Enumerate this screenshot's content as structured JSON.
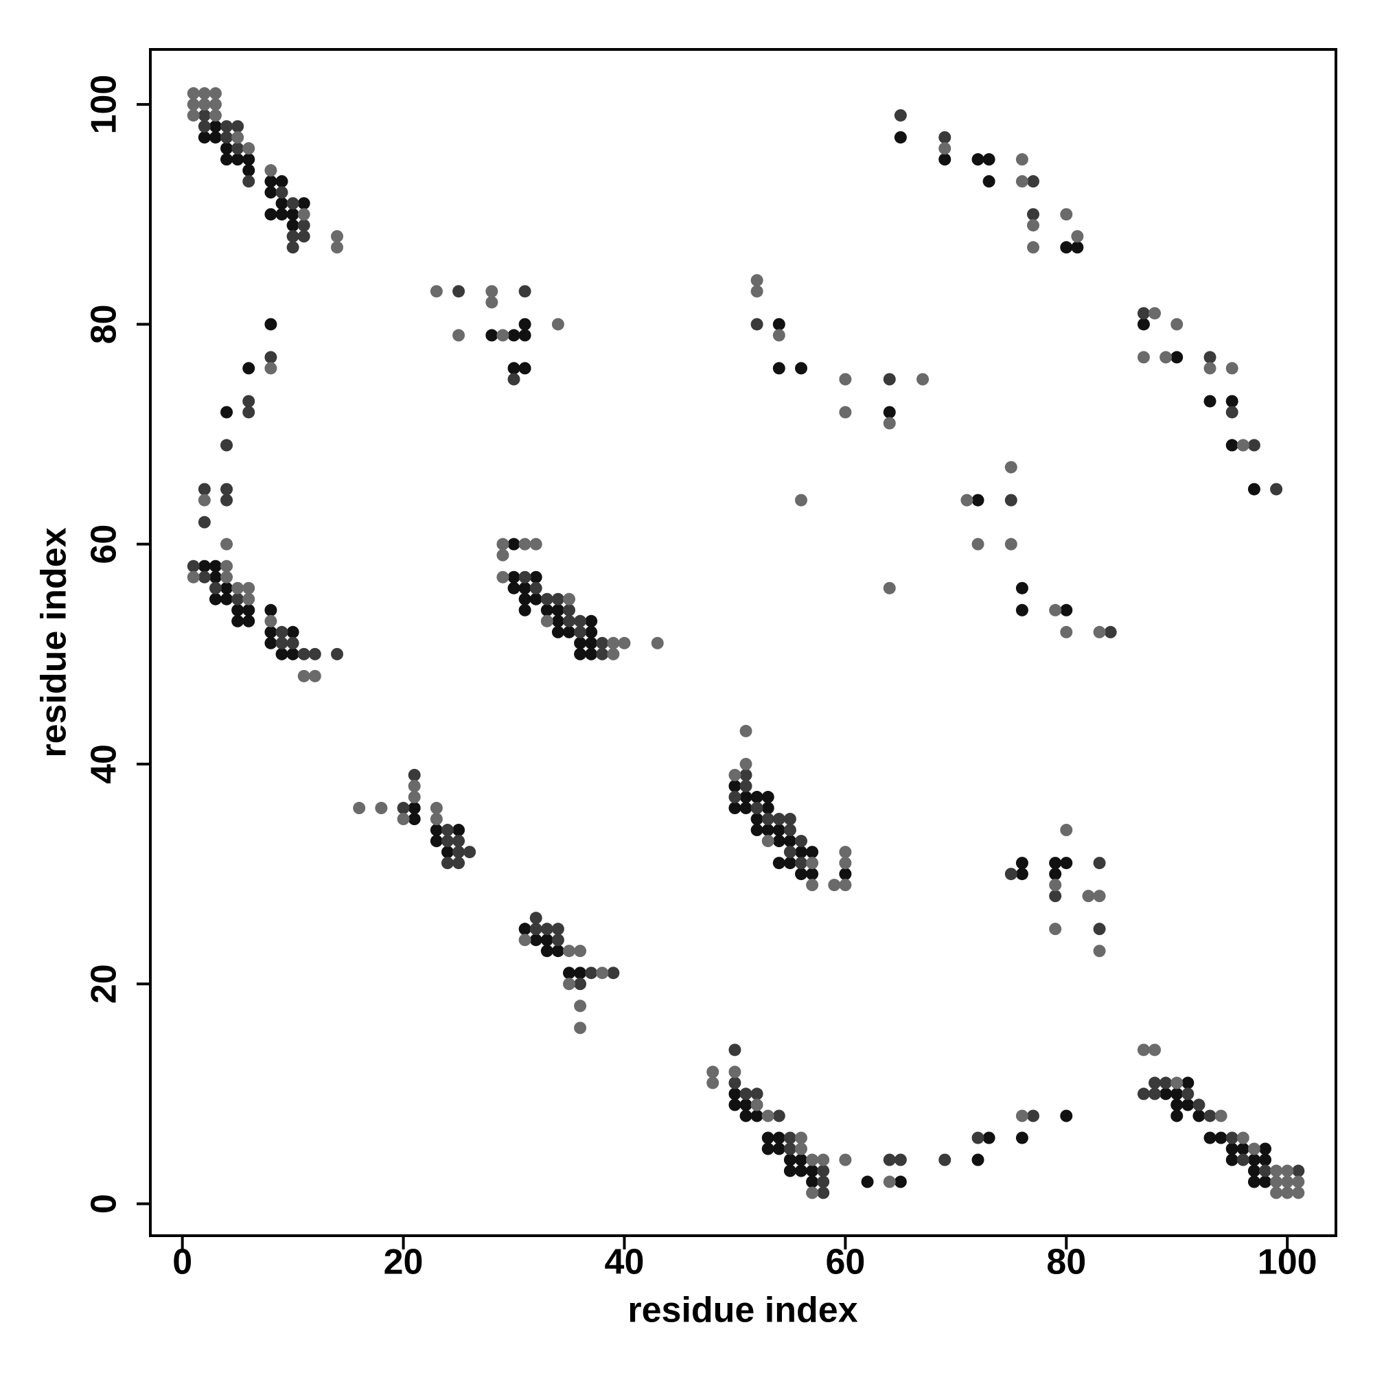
{
  "chart_data": {
    "type": "scatter",
    "xlabel": "residue index",
    "ylabel": "residue index",
    "xlim": [
      -2.9,
      104.4
    ],
    "ylim": [
      -2.9,
      105.0
    ],
    "xticks": [
      0,
      20,
      40,
      60,
      80,
      100
    ],
    "yticks": [
      0,
      20,
      40,
      60,
      80,
      100
    ],
    "series": [
      {
        "color": "#111111",
        "x": [
          3,
          2,
          3,
          4,
          4,
          5,
          6,
          6,
          8,
          9,
          8,
          9,
          11,
          8,
          9,
          10,
          10,
          8,
          6,
          4,
          2,
          3,
          3,
          4,
          3,
          4,
          5,
          6,
          5,
          6,
          8,
          8,
          10,
          8,
          9,
          10,
          28,
          30,
          31,
          31,
          30,
          31,
          30,
          30,
          32,
          30,
          31,
          31,
          32,
          31,
          33,
          34,
          34,
          37,
          34,
          35,
          37,
          36,
          37,
          36,
          37,
          21,
          21,
          23,
          25,
          23,
          24,
          31,
          32,
          33,
          33,
          34,
          35,
          36,
          50,
          51,
          52,
          53,
          50,
          51,
          53,
          52,
          52,
          53,
          54,
          54,
          55,
          56,
          57,
          54,
          55,
          56,
          57,
          60,
          50,
          50,
          51,
          51,
          52,
          53,
          54,
          53,
          54,
          55,
          56,
          55,
          56,
          57,
          57,
          62,
          65,
          73,
          72,
          76,
          80,
          91,
          89,
          90,
          90,
          91,
          90,
          92,
          93,
          94,
          95,
          96,
          98,
          95,
          97,
          98,
          97,
          97,
          98,
          76,
          76,
          79,
          80,
          79,
          72,
          76,
          76,
          80,
          54,
          54,
          56,
          64,
          65,
          69,
          72,
          73,
          73,
          80,
          81,
          87,
          90,
          93,
          95,
          95,
          97
        ],
        "values": [
          98,
          97,
          97,
          96,
          95,
          95,
          95,
          94,
          93,
          93,
          92,
          91,
          91,
          90,
          90,
          90,
          89,
          80,
          76,
          72,
          58,
          58,
          57,
          56,
          55,
          55,
          54,
          54,
          53,
          53,
          54,
          52,
          52,
          51,
          50,
          50,
          79,
          79,
          80,
          79,
          76,
          76,
          60,
          57,
          57,
          56,
          56,
          55,
          55,
          54,
          54,
          54,
          53,
          53,
          52,
          52,
          52,
          51,
          51,
          50,
          50,
          36,
          35,
          34,
          34,
          33,
          32,
          25,
          24,
          24,
          23,
          23,
          21,
          21,
          38,
          37,
          37,
          37,
          36,
          36,
          36,
          35,
          34,
          34,
          34,
          33,
          33,
          32,
          32,
          31,
          31,
          30,
          30,
          30,
          10,
          9,
          9,
          8,
          8,
          6,
          6,
          5,
          5,
          4,
          4,
          3,
          3,
          3,
          2,
          2,
          2,
          6,
          4,
          6,
          8,
          11,
          10,
          10,
          9,
          9,
          8,
          8,
          6,
          6,
          5,
          5,
          5,
          4,
          4,
          4,
          3,
          2,
          2,
          31,
          30,
          31,
          31,
          30,
          64,
          56,
          54,
          54,
          80,
          76,
          76,
          72,
          97,
          95,
          95,
          95,
          93,
          87,
          87,
          80,
          77,
          73,
          73,
          69,
          65
        ]
      },
      {
        "color": "#3a3a3a",
        "x": [
          2,
          2,
          4,
          5,
          4,
          5,
          6,
          9,
          10,
          11,
          10,
          11,
          10,
          8,
          6,
          6,
          4,
          2,
          4,
          4,
          2,
          1,
          2,
          3,
          5,
          9,
          9,
          10,
          11,
          12,
          14,
          25,
          31,
          30,
          31,
          32,
          33,
          34,
          35,
          35,
          36,
          36,
          38,
          38,
          20,
          21,
          24,
          24,
          25,
          25,
          26,
          24,
          25,
          32,
          32,
          33,
          34,
          34,
          37,
          39,
          36,
          51,
          51,
          50,
          52,
          53,
          54,
          55,
          55,
          56,
          55,
          56,
          50,
          50,
          51,
          52,
          54,
          55,
          55,
          58,
          58,
          58,
          64,
          65,
          69,
          72,
          77,
          87,
          88,
          89,
          88,
          91,
          92,
          93,
          95,
          96,
          98,
          101,
          75,
          79,
          83,
          83,
          75,
          84,
          52,
          64,
          65,
          69,
          77,
          77,
          87,
          93,
          95,
          97,
          99
        ],
        "values": [
          99,
          98,
          98,
          98,
          97,
          96,
          93,
          92,
          91,
          89,
          88,
          88,
          87,
          77,
          73,
          72,
          69,
          65,
          65,
          64,
          62,
          58,
          57,
          56,
          55,
          52,
          51,
          51,
          50,
          50,
          50,
          83,
          83,
          75,
          57,
          56,
          55,
          55,
          54,
          53,
          53,
          52,
          51,
          50,
          36,
          39,
          34,
          33,
          33,
          32,
          32,
          31,
          31,
          26,
          25,
          25,
          25,
          24,
          21,
          21,
          20,
          39,
          38,
          37,
          36,
          35,
          35,
          35,
          34,
          33,
          32,
          31,
          14,
          11,
          10,
          10,
          8,
          6,
          5,
          3,
          2,
          1,
          4,
          4,
          4,
          6,
          8,
          10,
          11,
          11,
          10,
          10,
          9,
          8,
          6,
          4,
          3,
          3,
          30,
          28,
          31,
          25,
          64,
          52,
          80,
          75,
          99,
          97,
          93,
          90,
          81,
          77,
          72,
          69,
          65
        ]
      },
      {
        "color": "#6a6a6a",
        "x": [
          1,
          2,
          3,
          1,
          2,
          3,
          1,
          3,
          5,
          6,
          8,
          11,
          14,
          14,
          8,
          2,
          4,
          4,
          1,
          4,
          5,
          6,
          6,
          8,
          11,
          12,
          23,
          28,
          28,
          25,
          29,
          34,
          29,
          31,
          32,
          29,
          29,
          35,
          33,
          39,
          40,
          43,
          39,
          16,
          18,
          20,
          21,
          21,
          23,
          23,
          31,
          35,
          36,
          38,
          35,
          36,
          36,
          51,
          51,
          50,
          53,
          57,
          57,
          60,
          60,
          59,
          60,
          48,
          50,
          48,
          52,
          53,
          56,
          56,
          57,
          58,
          57,
          60,
          64,
          76,
          87,
          88,
          90,
          94,
          96,
          97,
          99,
          100,
          99,
          100,
          101,
          99,
          100,
          101,
          80,
          79,
          79,
          82,
          83,
          83,
          75,
          71,
          72,
          75,
          64,
          56,
          79,
          80,
          83,
          52,
          52,
          54,
          60,
          60,
          64,
          67,
          69,
          76,
          76,
          77,
          77,
          80,
          81,
          88,
          87,
          89,
          90,
          93,
          95,
          96
        ],
        "values": [
          101,
          101,
          101,
          100,
          100,
          100,
          99,
          99,
          97,
          96,
          94,
          90,
          88,
          87,
          76,
          64,
          60,
          58,
          57,
          57,
          56,
          56,
          55,
          53,
          48,
          48,
          83,
          83,
          82,
          79,
          79,
          80,
          60,
          60,
          60,
          59,
          57,
          55,
          53,
          51,
          51,
          51,
          50,
          36,
          36,
          35,
          38,
          37,
          36,
          35,
          24,
          23,
          23,
          21,
          20,
          18,
          16,
          43,
          40,
          39,
          33,
          31,
          29,
          32,
          31,
          29,
          29,
          12,
          12,
          11,
          9,
          8,
          6,
          5,
          4,
          4,
          1,
          4,
          2,
          8,
          14,
          14,
          11,
          8,
          6,
          5,
          3,
          3,
          2,
          2,
          2,
          1,
          1,
          1,
          34,
          29,
          25,
          28,
          28,
          23,
          67,
          64,
          60,
          60,
          56,
          64,
          54,
          52,
          52,
          84,
          83,
          79,
          75,
          72,
          71,
          75,
          96,
          95,
          93,
          89,
          87,
          90,
          88,
          81,
          77,
          77,
          80,
          76,
          76,
          69
        ]
      }
    ]
  }
}
